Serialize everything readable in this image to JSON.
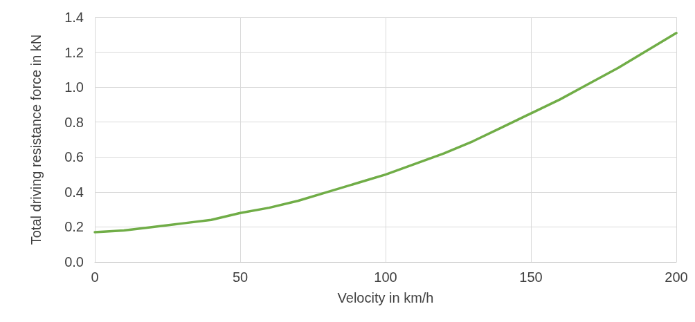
{
  "chart_data": {
    "type": "line",
    "xlabel": "Velocity in km/h",
    "ylabel": "Total driving resistance force in kN",
    "x": [
      0,
      10,
      20,
      30,
      40,
      50,
      60,
      70,
      80,
      90,
      100,
      110,
      120,
      130,
      140,
      150,
      160,
      170,
      180,
      190,
      200
    ],
    "series": [
      {
        "color": "#70ad47",
        "values": [
          0.17,
          0.18,
          0.2,
          0.22,
          0.24,
          0.28,
          0.31,
          0.35,
          0.4,
          0.45,
          0.5,
          0.56,
          0.62,
          0.69,
          0.77,
          0.85,
          0.93,
          1.02,
          1.11,
          1.21,
          1.31
        ]
      }
    ],
    "xlim": [
      0,
      200
    ],
    "xticks": [
      0,
      50,
      100,
      150,
      200
    ],
    "ylim": [
      0,
      1.4
    ],
    "yticks": [
      {
        "value": 0,
        "label": "0.0"
      },
      {
        "value": 0.2,
        "label": "0.2"
      },
      {
        "value": 0.4,
        "label": "0.4"
      },
      {
        "value": 0.6,
        "label": "0.6"
      },
      {
        "value": 0.8,
        "label": "0.8"
      },
      {
        "value": 1,
        "label": "1.0"
      },
      {
        "value": 1.2,
        "label": "1.2"
      },
      {
        "value": 1.4,
        "label": "1.4"
      }
    ],
    "grid": true,
    "marker": "none",
    "line_style": "solid"
  }
}
